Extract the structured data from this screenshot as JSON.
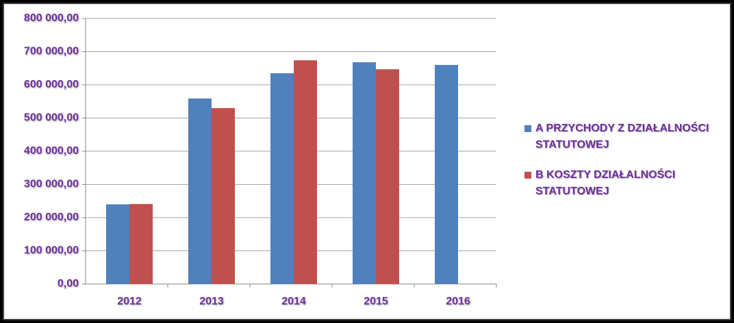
{
  "chart_data": {
    "type": "bar",
    "categories": [
      "2012",
      "2013",
      "2014",
      "2015",
      "2016"
    ],
    "series": [
      {
        "name": "A PRZYCHODY Z DZIAŁALNOŚCI STATUTOWEJ",
        "color": "#4f81bd",
        "values": [
          240000,
          559000,
          635000,
          668000,
          660000
        ]
      },
      {
        "name": "B KOSZTY DZIAŁALNOŚCI STATUTOWEJ",
        "color": "#c0504d",
        "values": [
          241000,
          530000,
          674000,
          647000,
          null
        ]
      }
    ],
    "ylim": [
      0,
      800000
    ],
    "yticks": [
      {
        "value": 0,
        "label": "0,00"
      },
      {
        "value": 100000,
        "label": "100 000,00"
      },
      {
        "value": 200000,
        "label": "200 000,00"
      },
      {
        "value": 300000,
        "label": "300 000,00"
      },
      {
        "value": 400000,
        "label": "400 000,00"
      },
      {
        "value": 500000,
        "label": "500 000,00"
      },
      {
        "value": 600000,
        "label": "600 000,00"
      },
      {
        "value": 700000,
        "label": "700 000,00"
      },
      {
        "value": 800000,
        "label": "800 000,00"
      }
    ],
    "grid": true,
    "legend": "right"
  }
}
